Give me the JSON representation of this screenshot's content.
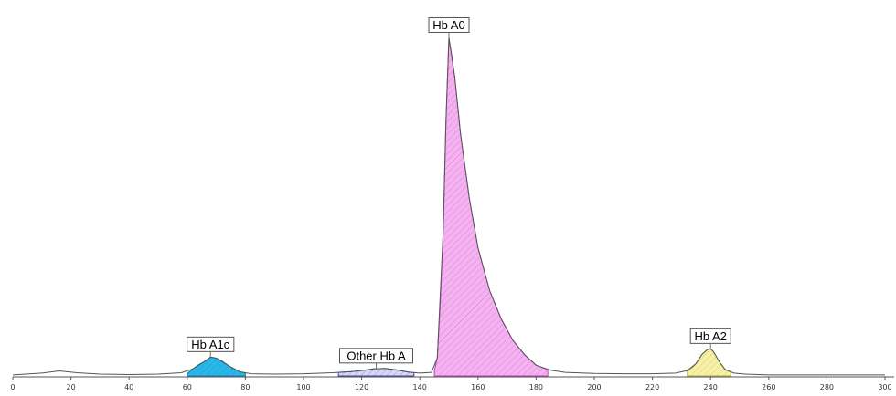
{
  "chart_data": {
    "type": "area",
    "title": "",
    "xlabel": "",
    "ylabel": "",
    "xlim": [
      0,
      300
    ],
    "ylim": [
      0,
      100
    ],
    "x_ticks": [
      0,
      20,
      40,
      60,
      80,
      100,
      120,
      140,
      160,
      180,
      200,
      220,
      240,
      260,
      280,
      300
    ],
    "x_tick_labels": [
      "0",
      "20",
      "40",
      "60",
      "80",
      "100",
      "120",
      "140",
      "160",
      "180",
      "200",
      "220",
      "240",
      "260",
      "280",
      "300"
    ],
    "grid": false,
    "baseline_trace": {
      "color": "#555555",
      "x": [
        0,
        10,
        16,
        22,
        30,
        40,
        50,
        58,
        62,
        66,
        68,
        70,
        74,
        78,
        82,
        90,
        100,
        110,
        116,
        120,
        124,
        128,
        132,
        136,
        140,
        144,
        146,
        148,
        149,
        150,
        152,
        154,
        157,
        160,
        164,
        168,
        172,
        176,
        180,
        185,
        190,
        200,
        210,
        220,
        228,
        232,
        235,
        237,
        239,
        240,
        241,
        243,
        245,
        248,
        252,
        260,
        270,
        280,
        290,
        300
      ],
      "y": [
        0.3,
        0.8,
        1.4,
        0.9,
        0.5,
        0.4,
        0.5,
        0.9,
        2.0,
        4.1,
        5.3,
        5.0,
        3.0,
        1.2,
        0.6,
        0.5,
        0.6,
        0.9,
        1.2,
        1.5,
        2.0,
        2.1,
        1.7,
        1.1,
        0.8,
        1.0,
        5.0,
        40.0,
        72.0,
        95.0,
        84.0,
        68.0,
        50.0,
        36.0,
        24.0,
        16.0,
        10.0,
        6.0,
        3.0,
        1.6,
        1.0,
        0.7,
        0.6,
        0.6,
        0.8,
        1.5,
        3.5,
        6.0,
        7.5,
        7.6,
        6.8,
        4.0,
        1.8,
        0.8,
        0.5,
        0.3,
        0.3,
        0.3,
        0.3,
        0.3
      ]
    },
    "peaks": [
      {
        "name": "Hb A1c",
        "label": "Hb A1c",
        "fill": "#29b6e8",
        "stroke": "#1a7fae",
        "apex_x": 68,
        "apex_y": 5.3,
        "x": [
          60,
          62,
          64,
          66,
          68,
          70,
          72,
          74,
          76,
          78,
          80
        ],
        "y": [
          0.7,
          2.0,
          3.2,
          4.1,
          5.3,
          5.0,
          4.2,
          3.0,
          2.0,
          1.2,
          0.8
        ]
      },
      {
        "name": "Other Hb A",
        "label": "Other Hb A",
        "fill": "#d8d8f4",
        "stroke": "#4a4aa8",
        "apex_x": 125,
        "apex_y": 2.1,
        "x": [
          112,
          116,
          120,
          124,
          128,
          132,
          136,
          138
        ],
        "y": [
          1.0,
          1.2,
          1.5,
          2.0,
          2.1,
          1.7,
          1.1,
          0.9
        ]
      },
      {
        "name": "Hb A0",
        "label": "Hb A0",
        "fill": "#f4b3f0",
        "stroke": "#c03cc0",
        "apex_x": 150,
        "apex_y": 95,
        "x": [
          145,
          146,
          147,
          148,
          149,
          150,
          151,
          152,
          154,
          157,
          160,
          164,
          168,
          172,
          176,
          180,
          184
        ],
        "y": [
          1.5,
          5.0,
          20.0,
          40.0,
          72.0,
          95.0,
          90.0,
          84.0,
          68.0,
          50.0,
          36.0,
          24.0,
          16.0,
          10.0,
          6.0,
          3.0,
          1.8
        ]
      },
      {
        "name": "Hb A2",
        "label": "Hb A2",
        "fill": "#f6f1a6",
        "stroke": "#b9ac3a",
        "apex_x": 240,
        "apex_y": 7.6,
        "x": [
          232,
          234,
          235,
          237,
          239,
          240,
          241,
          243,
          245,
          247
        ],
        "y": [
          1.5,
          2.5,
          3.5,
          6.0,
          7.5,
          7.6,
          6.8,
          4.0,
          1.8,
          1.0
        ]
      }
    ]
  }
}
